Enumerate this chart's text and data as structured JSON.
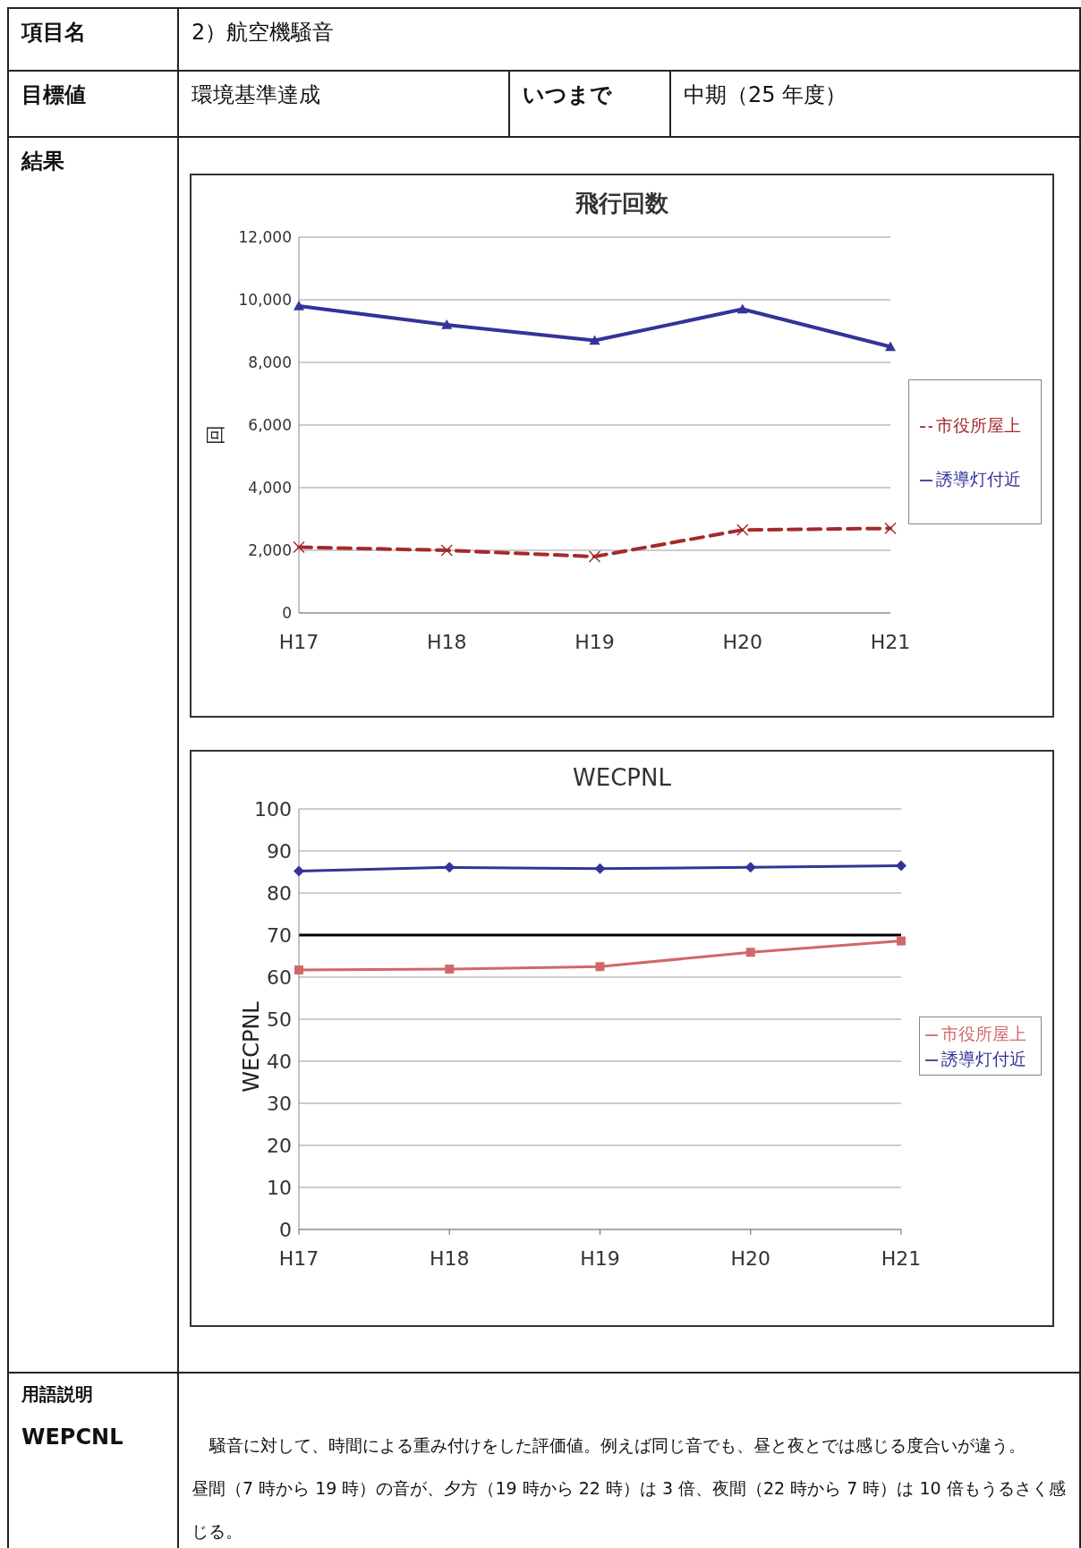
{
  "chart_data": [
    {
      "type": "line",
      "title": "飛行回数",
      "ylabel": "回",
      "categories": [
        "H17",
        "H18",
        "H19",
        "H20",
        "H21"
      ],
      "series": [
        {
          "name": "誘導灯付近",
          "color": "#333399",
          "marker": "triangle",
          "line_style": "solid",
          "values": [
            9800,
            9200,
            8700,
            9700,
            8500
          ]
        },
        {
          "name": "市役所屋上",
          "color": "#a52a2a",
          "marker": "cross",
          "line_style": "dashed",
          "values": [
            2100,
            2000,
            1800,
            2650,
            2700
          ]
        }
      ],
      "ylim": [
        0,
        12000
      ],
      "yticks": [
        {
          "value": 0,
          "label": "0"
        },
        {
          "value": 2000,
          "label": "2,000"
        },
        {
          "value": 4000,
          "label": "4,000"
        },
        {
          "value": 6000,
          "label": "6,000"
        },
        {
          "value": 8000,
          "label": "8,000"
        },
        {
          "value": 10000,
          "label": "10,000"
        },
        {
          "value": 12000,
          "label": "12,000"
        }
      ],
      "grid": "y",
      "legend": "right",
      "annotations": [
        "項目名",
        "2）航空機騒音",
        "目標値",
        "環境基準達成",
        "いつまで",
        "中期（25 年度）",
        "結果"
      ]
    },
    {
      "type": "line",
      "title": "WECPNL",
      "ylabel": "WECPNL",
      "categories": [
        "H17",
        "H18",
        "H19",
        "H20",
        "H21"
      ],
      "series": [
        {
          "name": "誘導灯付近",
          "color": "#333399",
          "marker": "diamond",
          "values": [
            85.2,
            86.1,
            85.8,
            86.1,
            86.5
          ]
        },
        {
          "name": "市役所屋上",
          "color": "#d06868",
          "marker": "square",
          "values": [
            61.7,
            61.9,
            62.5,
            65.9,
            68.6
          ]
        }
      ],
      "ylim": [
        0,
        100
      ],
      "yticks": [
        0,
        10,
        20,
        30,
        40,
        50,
        60,
        70,
        80,
        90,
        100
      ],
      "grid": "y",
      "legend": "right",
      "ref_lines": [
        {
          "axis": "y",
          "value": 70,
          "color": "#000000"
        }
      ],
      "annotations": [
        "用語説明",
        "WEPCNL",
        "騒音に対して、時間による重み付けをした評価値。例えば同じ音でも、昼と夜とでは感じる度合いが違う。",
        "昼間（7 時から 19 時）の音が、夕方（19 時から 22 時）は 3 倍、夜間（22 時から 7 時）は 10 倍もうるさく感じる。"
      ]
    }
  ]
}
